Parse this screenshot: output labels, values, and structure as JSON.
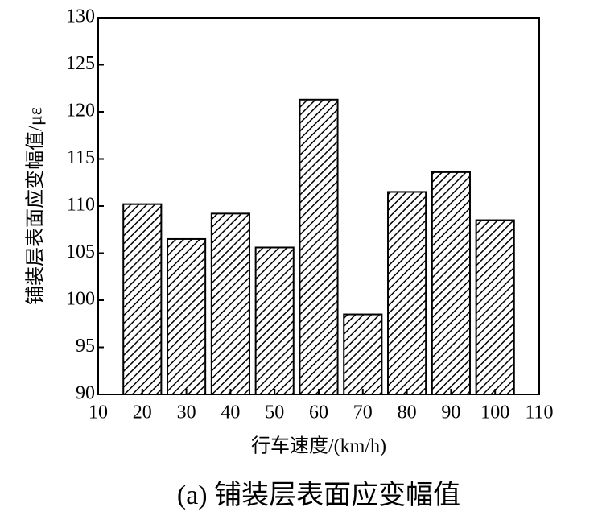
{
  "chart_data": {
    "type": "bar",
    "title": "(a) 铺装层表面应变幅值",
    "x_label": "行车速度/(km/h)",
    "y_label": "铺装层表面应变幅值/με",
    "x": [
      20,
      30,
      40,
      50,
      60,
      70,
      80,
      90,
      100
    ],
    "values": [
      110.2,
      106.5,
      109.2,
      105.6,
      121.3,
      98.5,
      111.5,
      113.6,
      108.5
    ],
    "color": "#000000",
    "xlim": [
      10,
      110
    ],
    "xticks": [
      10,
      20,
      30,
      40,
      50,
      60,
      70,
      80,
      90,
      100,
      110
    ],
    "ylim": [
      90,
      130
    ],
    "yticks": [
      90,
      95,
      100,
      105,
      110,
      115,
      120,
      125,
      130
    ]
  }
}
